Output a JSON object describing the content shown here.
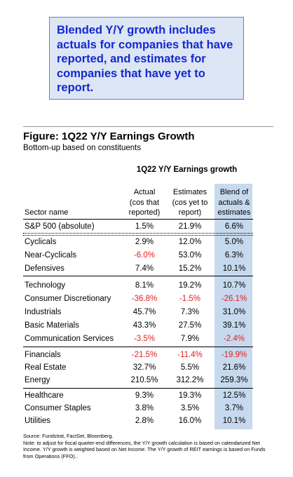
{
  "callout": {
    "text": "Blended Y/Y growth includes actuals for companies that have reported, and estimates for companies that have yet to report."
  },
  "figure": {
    "title": "Figure: 1Q22 Y/Y Earnings Growth",
    "subtitle": "Bottom-up based on constituents"
  },
  "table": {
    "group_title": "1Q22 Y/Y Earnings growth",
    "headers": {
      "sector": "Sector name",
      "actual": [
        "Actual",
        "(cos that",
        "reported)"
      ],
      "estimate": [
        "Estimates",
        "(cos yet to",
        "report)"
      ],
      "blend": [
        "Blend of",
        "actuals &",
        "estimates"
      ]
    },
    "rows": [
      {
        "name": "S&P 500 (absolute)",
        "actual": "1.5%",
        "estimate": "21.9%",
        "blend": "6.6%"
      },
      {
        "name": "Cyclicals",
        "actual": "2.9%",
        "estimate": "12.0%",
        "blend": "5.0%"
      },
      {
        "name": "Near-Cyclicals",
        "actual": "-6.0%",
        "estimate": "53.0%",
        "blend": "6.3%"
      },
      {
        "name": "Defensives",
        "actual": "7.4%",
        "estimate": "15.2%",
        "blend": "10.1%"
      },
      {
        "name": "Technology",
        "actual": "8.1%",
        "estimate": "19.2%",
        "blend": "10.7%"
      },
      {
        "name": "Consumer Discretionary",
        "actual": "-36.8%",
        "estimate": "-1.5%",
        "blend": "-26.1%"
      },
      {
        "name": "Industrials",
        "actual": "45.7%",
        "estimate": "7.3%",
        "blend": "31.0%"
      },
      {
        "name": "Basic Materials",
        "actual": "43.3%",
        "estimate": "27.5%",
        "blend": "39.1%"
      },
      {
        "name": "Communication Services",
        "actual": "-3.5%",
        "estimate": "7.9%",
        "blend": "-2.4%"
      },
      {
        "name": "Financials",
        "actual": "-21.5%",
        "estimate": "-11.4%",
        "blend": "-19.9%"
      },
      {
        "name": "Real Estate",
        "actual": "32.7%",
        "estimate": "5.5%",
        "blend": "21.6%"
      },
      {
        "name": "Energy",
        "actual": "210.5%",
        "estimate": "312.2%",
        "blend": "259.3%"
      },
      {
        "name": "Healthcare",
        "actual": "9.3%",
        "estimate": "19.3%",
        "blend": "12.5%"
      },
      {
        "name": "Consumer Staples",
        "actual": "3.8%",
        "estimate": "3.5%",
        "blend": "3.7%"
      },
      {
        "name": "Utilities",
        "actual": "2.8%",
        "estimate": "16.0%",
        "blend": "10.1%"
      }
    ]
  },
  "source": {
    "line1": "Source: Fundstrat, FactSet, Bloomberg.",
    "note": "Note: to adjust for fiscal quarter-end differences, the Y/Y growth calculation is based on calendarized Net Income. Y/Y growth is weighted based on Net Income. The Y/Y growth of REIT earnings is based on Funds from Operations (FFO).."
  },
  "colors": {
    "callout_text": "#1428d0",
    "callout_bg": "#dce6f5",
    "blend_column_bg": "#c6d9ee",
    "negative": "#e02020"
  }
}
